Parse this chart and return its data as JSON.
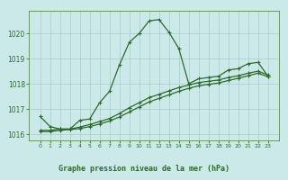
{
  "background_color": "#cce9e9",
  "line_color": "#2d6a2d",
  "grid_color": "#aacccc",
  "series1": {
    "x": [
      0,
      1,
      2,
      3,
      4,
      5,
      6,
      7,
      8,
      9,
      10,
      11,
      12,
      13,
      14,
      15,
      16,
      17,
      18,
      19,
      20,
      21,
      22,
      23
    ],
    "y": [
      1016.7,
      1016.3,
      1016.2,
      1016.2,
      1016.55,
      1016.6,
      1017.25,
      1017.7,
      1018.75,
      1019.65,
      1020.0,
      1020.5,
      1020.55,
      1020.05,
      1019.4,
      1018.0,
      1018.2,
      1018.25,
      1018.3,
      1018.55,
      1018.6,
      1018.8,
      1018.85,
      1018.3
    ]
  },
  "series2": {
    "x": [
      0,
      1,
      2,
      3,
      4,
      5,
      6,
      7,
      8,
      9,
      10,
      11,
      12,
      13,
      14,
      15,
      16,
      17,
      18,
      19,
      20,
      21,
      22,
      23
    ],
    "y": [
      1016.15,
      1016.15,
      1016.2,
      1016.2,
      1016.28,
      1016.38,
      1016.5,
      1016.62,
      1016.82,
      1017.05,
      1017.25,
      1017.45,
      1017.58,
      1017.72,
      1017.85,
      1017.95,
      1018.05,
      1018.1,
      1018.15,
      1018.25,
      1018.32,
      1018.42,
      1018.5,
      1018.35
    ]
  },
  "series3": {
    "x": [
      0,
      1,
      2,
      3,
      4,
      5,
      6,
      7,
      8,
      9,
      10,
      11,
      12,
      13,
      14,
      15,
      16,
      17,
      18,
      19,
      20,
      21,
      22,
      23
    ],
    "y": [
      1016.1,
      1016.1,
      1016.15,
      1016.18,
      1016.22,
      1016.3,
      1016.4,
      1016.52,
      1016.68,
      1016.88,
      1017.08,
      1017.28,
      1017.42,
      1017.56,
      1017.7,
      1017.82,
      1017.92,
      1017.98,
      1018.03,
      1018.13,
      1018.22,
      1018.32,
      1018.42,
      1018.28
    ]
  },
  "ylim": [
    1015.75,
    1020.9
  ],
  "yticks": [
    1016,
    1017,
    1018,
    1019,
    1020
  ],
  "xticks": [
    0,
    1,
    2,
    3,
    4,
    5,
    6,
    7,
    8,
    9,
    10,
    11,
    12,
    13,
    14,
    15,
    16,
    17,
    18,
    19,
    20,
    21,
    22,
    23
  ],
  "xlabel": "Graphe pression niveau de la mer (hPa)",
  "marker": "+",
  "marker_size": 3,
  "linewidth": 0.9
}
